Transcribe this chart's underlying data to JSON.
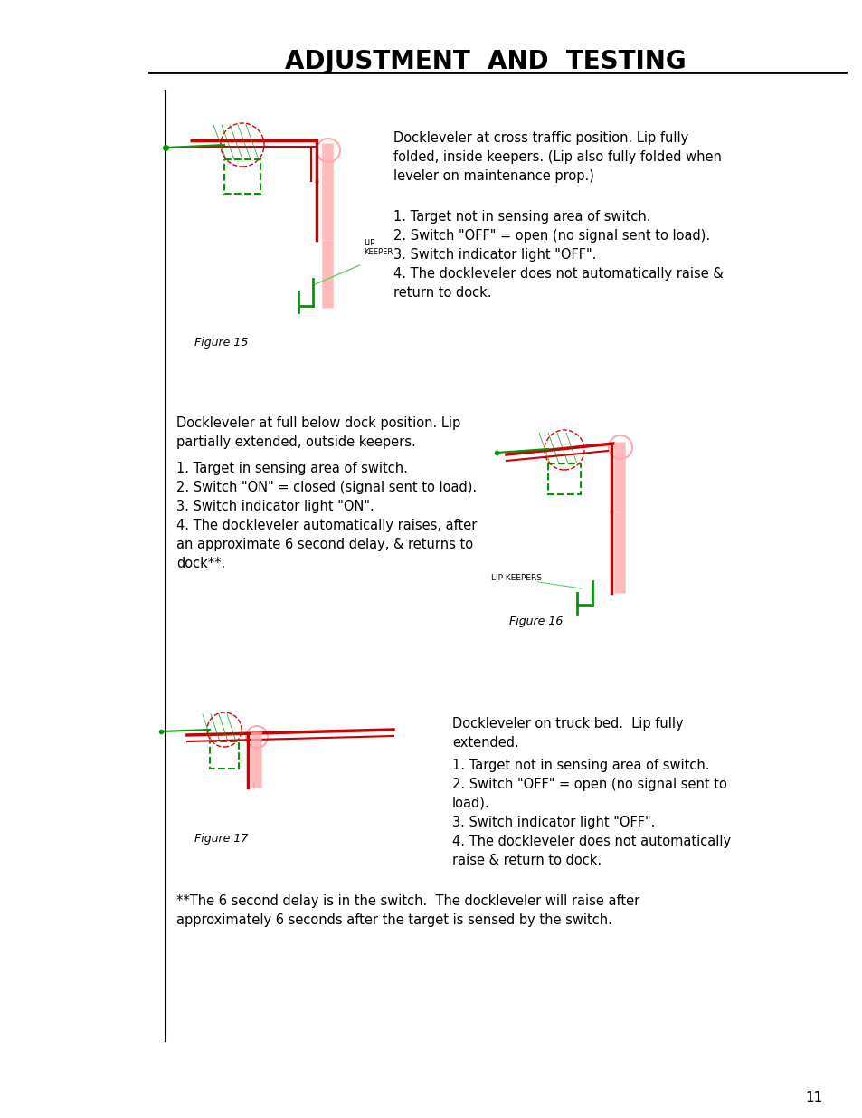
{
  "title": "ADJUSTMENT  AND  TESTING",
  "bg_color": "#ffffff",
  "text_color": "#000000",
  "page_number": "11",
  "section1": {
    "figure_label": "Figure 15",
    "description_para1": "Dockleveler at cross traffic position. Lip fully\nfolded, inside keepers. (Lip also fully folded when\nleveler on maintenance prop.)",
    "description_para2": "1. Target not in sensing area of switch.\n2. Switch \"OFF\" = open (no signal sent to load).\n3. Switch indicator light \"OFF\".\n4. The dockleveler does not automatically raise &\nreturn to dock."
  },
  "section2": {
    "figure_label": "Figure 16",
    "description_para1": "Dockleveler at full below dock position. Lip\npartially extended, outside keepers.",
    "description_para2": "1. Target in sensing area of switch.\n2. Switch \"ON\" = closed (signal sent to load).\n3. Switch indicator light \"ON\".\n4. The dockleveler automatically raises, after\nan approximate 6 second delay, & returns to\ndock**."
  },
  "section3": {
    "figure_label": "Figure 17",
    "description_para1": "Dockleveler on truck bed.  Lip fully\nextended.",
    "description_para2": "1. Target not in sensing area of switch.\n2. Switch \"OFF\" = open (no signal sent to\nload).\n3. Switch indicator light \"OFF\".\n4. The dockleveler does not automatically\nraise & return to dock."
  },
  "footnote": "**The 6 second delay is in the switch.  The dockleveler will raise after\napproximately 6 seconds after the target is sensed by the switch."
}
